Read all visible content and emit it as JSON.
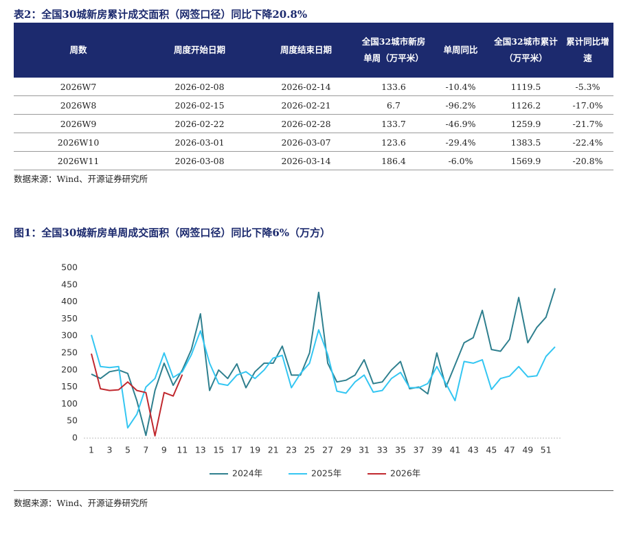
{
  "table": {
    "title": "表2：全国30城新房累计成交面积（网签口径）同比下降20.8%",
    "headers": [
      "周数",
      "周度开始日期",
      "周度结束日期",
      "全国32城市新房单周（万平米）",
      "单周同比",
      "全国32城市累计（万平米）",
      "累计同比增速"
    ],
    "rows": [
      [
        "2026W7",
        "2026-02-08",
        "2026-02-14",
        "133.6",
        "-10.4%",
        "1119.5",
        "-5.3%"
      ],
      [
        "2026W8",
        "2026-02-15",
        "2026-02-21",
        "6.7",
        "-96.2%",
        "1126.2",
        "-17.0%"
      ],
      [
        "2026W9",
        "2026-02-22",
        "2026-02-28",
        "133.7",
        "-46.9%",
        "1259.9",
        "-21.7%"
      ],
      [
        "2026W10",
        "2026-03-01",
        "2026-03-07",
        "123.6",
        "-29.4%",
        "1383.5",
        "-22.4%"
      ],
      [
        "2026W11",
        "2026-03-08",
        "2026-03-14",
        "186.4",
        "-6.0%",
        "1569.9",
        "-20.8%"
      ]
    ],
    "source": "数据来源：Wind、开源证券研究所"
  },
  "chart_data": {
    "type": "line",
    "title": "图1：全国30城新房单周成交面积（网签口径）同比下降6%（万方）",
    "x": [
      1,
      2,
      3,
      4,
      5,
      6,
      7,
      8,
      9,
      10,
      11,
      12,
      13,
      14,
      15,
      16,
      17,
      18,
      19,
      20,
      21,
      22,
      23,
      24,
      25,
      26,
      27,
      28,
      29,
      30,
      31,
      32,
      33,
      34,
      35,
      36,
      37,
      38,
      39,
      40,
      41,
      42,
      43,
      44,
      45,
      46,
      47,
      48,
      49,
      50,
      51,
      52
    ],
    "xlim": [
      1,
      52
    ],
    "xticks": [
      1,
      3,
      5,
      7,
      9,
      11,
      13,
      15,
      17,
      19,
      21,
      23,
      25,
      27,
      29,
      31,
      33,
      35,
      37,
      39,
      41,
      43,
      45,
      47,
      49,
      51
    ],
    "ylim": [
      0,
      500
    ],
    "yticks": [
      0,
      50,
      100,
      150,
      200,
      250,
      300,
      350,
      400,
      450,
      500
    ],
    "series": [
      {
        "name": "2024年",
        "color": "#2e7f8e",
        "values": [
          188,
          175,
          195,
          200,
          190,
          110,
          8,
          140,
          220,
          155,
          200,
          260,
          365,
          140,
          200,
          175,
          218,
          148,
          195,
          220,
          220,
          270,
          185,
          185,
          250,
          428,
          220,
          165,
          170,
          185,
          230,
          160,
          165,
          200,
          225,
          145,
          150,
          130,
          250,
          150,
          215,
          280,
          295,
          375,
          260,
          255,
          290,
          413,
          280,
          325,
          355,
          440
        ]
      },
      {
        "name": "2025年",
        "color": "#33c6f2",
        "values": [
          303,
          210,
          207,
          210,
          30,
          70,
          150,
          175,
          250,
          178,
          195,
          245,
          315,
          220,
          160,
          155,
          185,
          195,
          175,
          200,
          235,
          243,
          148,
          190,
          220,
          318,
          245,
          138,
          132,
          165,
          185,
          135,
          140,
          175,
          193,
          148,
          148,
          160,
          210,
          160,
          110,
          225,
          220,
          230,
          143,
          175,
          182,
          210,
          180,
          183,
          240,
          268
        ]
      },
      {
        "name": "2026年",
        "color": "#c0272d",
        "values": [
          248,
          145,
          140,
          142,
          165,
          140,
          133.6,
          6.7,
          133.7,
          123.6,
          186.4,
          null,
          null,
          null,
          null,
          null,
          null,
          null,
          null,
          null,
          null,
          null,
          null,
          null,
          null,
          null,
          null,
          null,
          null,
          null,
          null,
          null,
          null,
          null,
          null,
          null,
          null,
          null,
          null,
          null,
          null,
          null,
          null,
          null,
          null,
          null,
          null,
          null,
          null,
          null,
          null,
          null
        ]
      }
    ],
    "source": "数据来源：Wind、开源证券研究所"
  }
}
